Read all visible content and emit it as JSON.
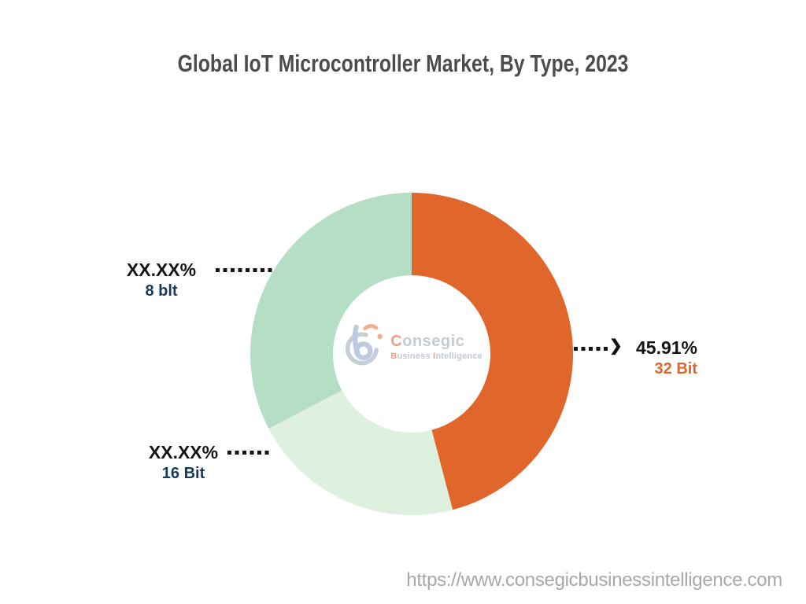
{
  "title": "Global IoT Microcontroller Market, By Type, 2023",
  "chart_data": {
    "type": "pie",
    "subtype": "donut",
    "title": "Global IoT Microcontroller Market, By Type, 2023",
    "categories": [
      "32 Bit",
      "16 Bit",
      "8 blt"
    ],
    "series": [
      {
        "name": "32 Bit",
        "value": 45.91,
        "display_value": "45.91%",
        "color": "#E1662B",
        "label_color": "#E1662B"
      },
      {
        "name": "16 Bit",
        "value": 21.42,
        "display_value": "XX.XX%",
        "color": "#DEF1DE",
        "label_color": "#16395C"
      },
      {
        "name": "8 blt",
        "value": 32.67,
        "display_value": "XX.XX%",
        "color": "#B4DFC4",
        "label_color": "#16395C"
      }
    ],
    "start_angle_deg": 0,
    "direction": "clockwise",
    "legend_position": "callout-labels",
    "center_watermark": "Consegic Business Intelligence"
  },
  "icons": {
    "arrow_right": "❯"
  },
  "watermark": {
    "brand_initial": "C",
    "brand_rest": "onsegic",
    "tagline_b": "B",
    "tagline_usiness": "usiness ",
    "tagline_i": "I",
    "tagline_ntelligence": "ntelligence",
    "accent_color": "#F1A181",
    "muted_color": "#C6CAD3"
  },
  "footer": {
    "url": "https://www.consegicbusinessintelligence.com"
  },
  "colors": {
    "title_text": "#4C4C4C",
    "callout_value_text": "#141414",
    "callout_navy": "#16395C",
    "footer_url_text": "#A8A8A8",
    "background": "#FFFFFF"
  }
}
